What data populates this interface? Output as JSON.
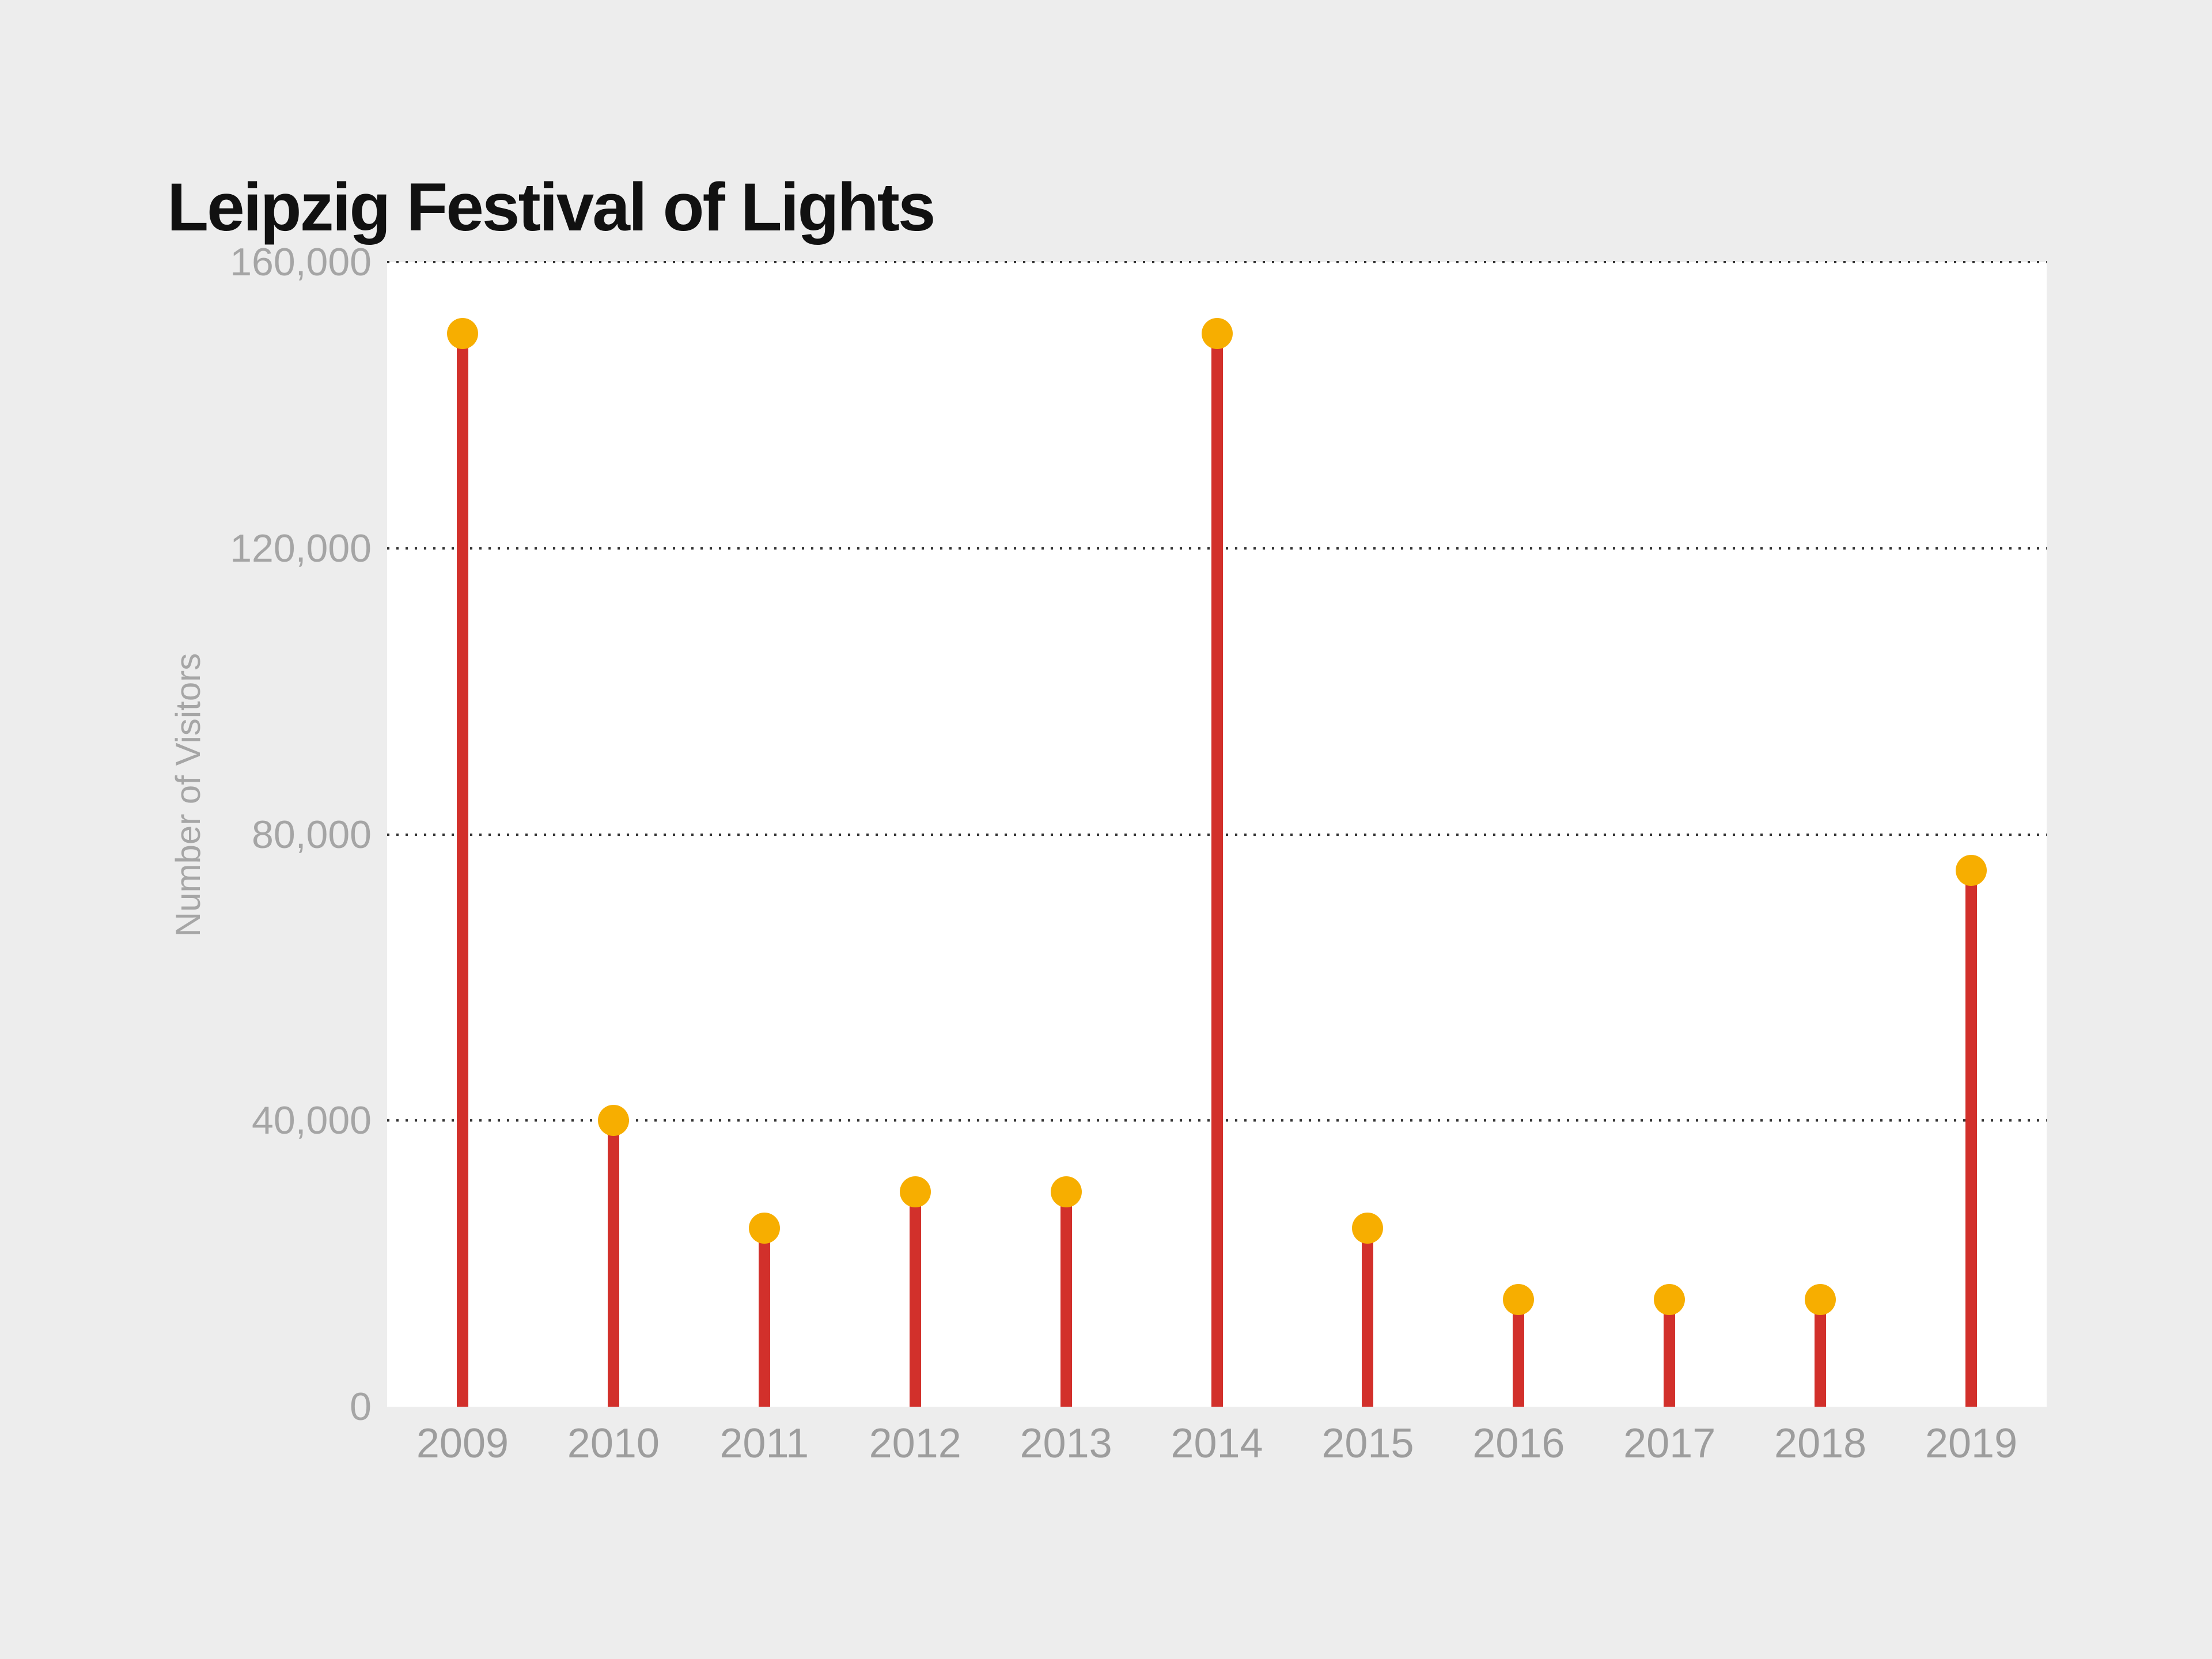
{
  "chart_data": {
    "type": "lollipop",
    "title": "Leipzig Festival of Lights",
    "xlabel": "",
    "ylabel": "Number of Visitors",
    "categories": [
      "2009",
      "2010",
      "2011",
      "2012",
      "2013",
      "2014",
      "2015",
      "2016",
      "2017",
      "2018",
      "2019"
    ],
    "values": [
      150000,
      40000,
      25000,
      30000,
      30000,
      150000,
      25000,
      15000,
      15000,
      15000,
      75000
    ],
    "ylim": [
      0,
      160000
    ],
    "yticks": [
      0,
      40000,
      80000,
      120000,
      160000
    ],
    "ytick_labels": [
      "0",
      "40,000",
      "80,000",
      "120,000",
      "160,000"
    ],
    "grid": "horizontal dotted, no gridline at zero",
    "legend": "none",
    "marker": "circle"
  },
  "colors": {
    "background": "#EDEDED",
    "plot_background": "#FFFFFF",
    "stem": "#D2302B",
    "marker": "#F7AE00",
    "gridline": "#333333",
    "title": "#111111",
    "y_tick_label": "#A5A5A5",
    "x_tick_label": "#9D9D9D",
    "axis_title": "#A6A6A6"
  }
}
